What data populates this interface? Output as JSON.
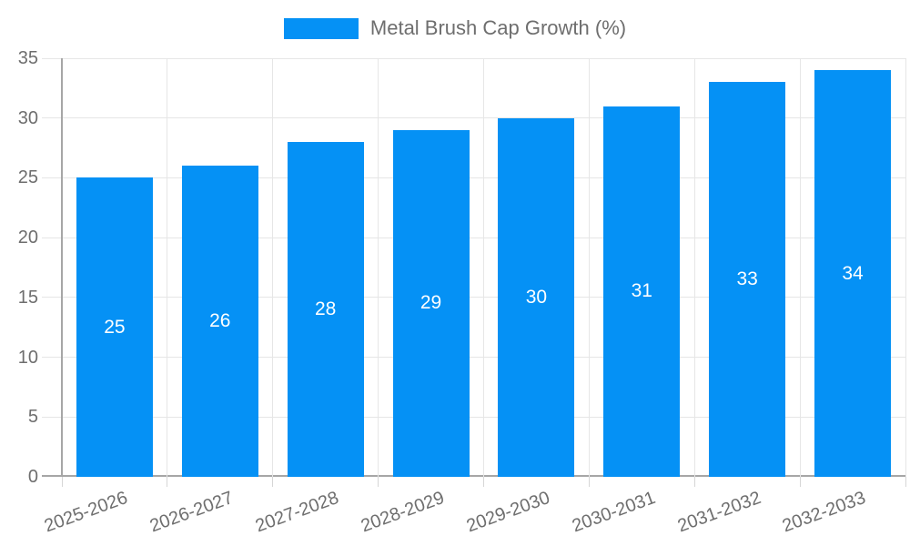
{
  "chart_data": {
    "type": "bar",
    "title": "Metal Brush Cap Growth (%)",
    "legend": [
      "Metal Brush Cap Growth (%)"
    ],
    "legend_position": "top-center",
    "categories": [
      "2025-2026",
      "2026-2027",
      "2027-2028",
      "2028-2029",
      "2029-2030",
      "2030-2031",
      "2031-2032",
      "2032-2033"
    ],
    "values": [
      25,
      26,
      28,
      29,
      30,
      31,
      33,
      34
    ],
    "bar_value_labels": [
      "25",
      "26",
      "28",
      "29",
      "30",
      "31",
      "33",
      "34"
    ],
    "xlabel": "",
    "ylabel": "",
    "ylim": [
      0,
      35
    ],
    "yticks": [
      0,
      5,
      10,
      15,
      20,
      25,
      30,
      35
    ],
    "grid": true,
    "x_label_rotation_deg": -20,
    "colors": {
      "bar": "#0591f5",
      "bar_label": "#ffffff",
      "axis_text": "#6e6e6e",
      "gridline": "#e6e6e6",
      "axis_line": "#a6a6a6",
      "tick": "#d6d6d6",
      "background": "#ffffff"
    }
  }
}
